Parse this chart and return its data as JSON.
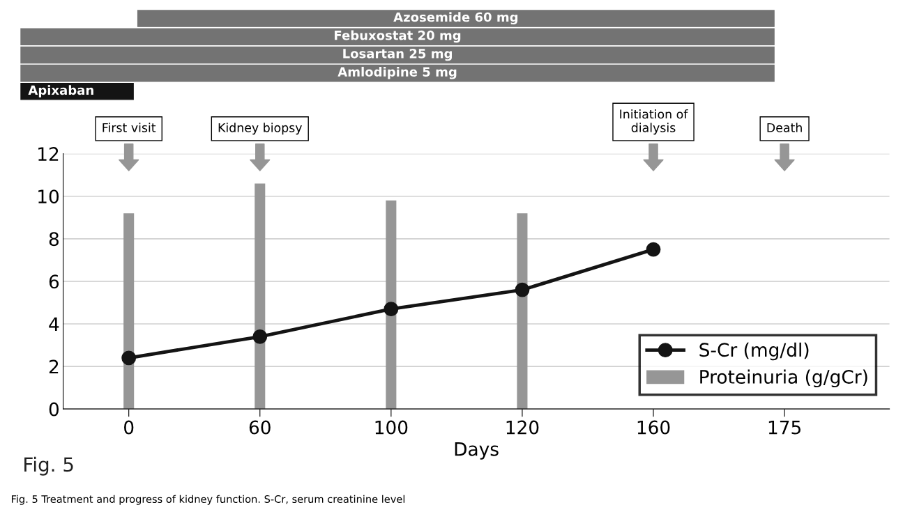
{
  "chart_data": {
    "type": "bar",
    "categories": [
      "0",
      "60",
      "100",
      "120",
      "160",
      "175"
    ],
    "xlabel": "Days",
    "series": [
      {
        "name": "Proteinuria (g/gCr)",
        "color": "#969696",
        "values": [
          9.2,
          10.6,
          9.8,
          9.2,
          null,
          null
        ]
      },
      {
        "name": "S-Cr (mg/dl)",
        "type": "line",
        "color": "#141414",
        "marker": "circle",
        "values": [
          2.4,
          3.4,
          4.7,
          5.6,
          7.5,
          null
        ]
      }
    ],
    "ylim": [
      0,
      12
    ],
    "yticks": [
      0,
      2,
      4,
      6,
      8,
      10,
      12
    ],
    "grid": "y",
    "legend": "bottom right",
    "annotations": [
      "Azosemide 60 mg",
      "Febuxostat 20 mg",
      "Losartan 25 mg",
      "Amlodipine 5 mg",
      "Apixaban",
      "First visit",
      "Kidney biopsy",
      "Initiation of\ndialysis",
      "Death",
      "Fig. 5",
      "Fig. 5 Treatment and progress of kidney function. S-Cr, serum creatinine level"
    ]
  }
}
